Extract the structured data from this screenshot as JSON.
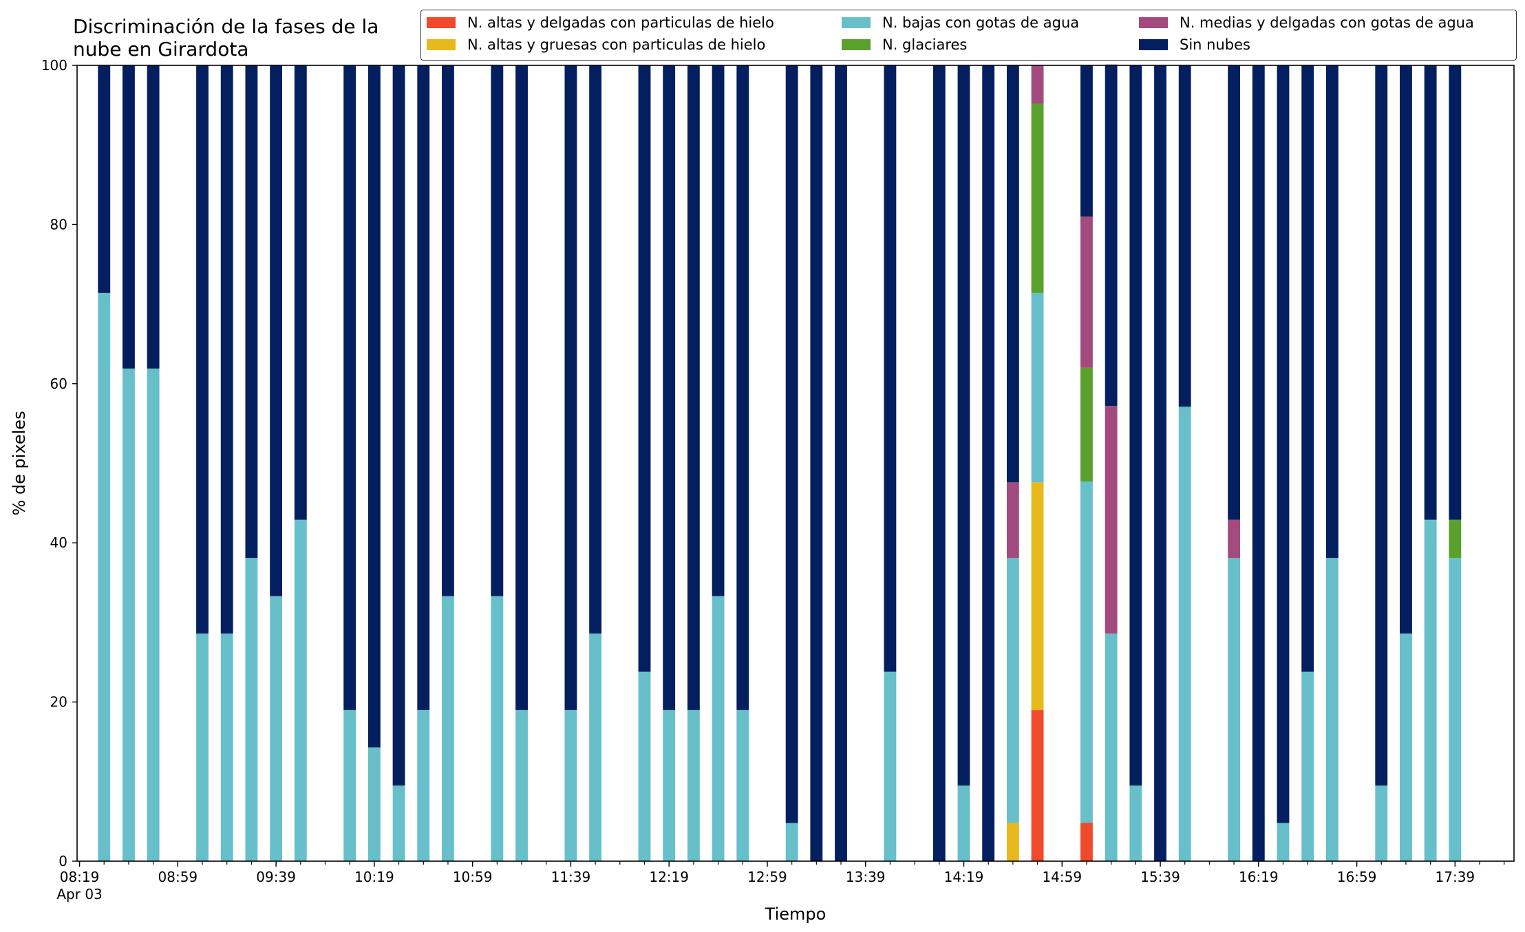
{
  "chart_data": {
    "type": "bar",
    "stacked": true,
    "title": "Discriminación de la fases de la nube en Girardota",
    "title_lines": [
      "Discriminación de la fases de la",
      "nube en Girardota"
    ],
    "xlabel": "Tiempo",
    "ylabel": "% de pixeles",
    "ylim": [
      0,
      100
    ],
    "yticks": [
      0,
      20,
      40,
      60,
      80,
      100
    ],
    "xtick_labels": [
      "08:19",
      "08:59",
      "09:39",
      "10:19",
      "10:59",
      "11:39",
      "12:19",
      "12:59",
      "13:39",
      "14:19",
      "14:59",
      "15:39",
      "16:19",
      "16:59",
      "17:39"
    ],
    "xtick_minutes": [
      499,
      539,
      579,
      619,
      659,
      699,
      739,
      779,
      819,
      859,
      899,
      939,
      979,
      1019,
      1059
    ],
    "date_label": "Apr 03",
    "xlim_minutes": [
      498,
      1083
    ],
    "bar_width_minutes": 5,
    "grid": false,
    "legend_position": "top-right",
    "series": [
      {
        "name": "N. altas y delgadas con particulas de hielo",
        "color": "#ee4a2b"
      },
      {
        "name": "N. altas y gruesas con particulas de hielo",
        "color": "#e8b91c"
      },
      {
        "name": "N. bajas con gotas de agua",
        "color": "#67bfca"
      },
      {
        "name": "N. glaciares",
        "color": "#5aa02c"
      },
      {
        "name": "N. medias y delgadas con gotas de agua",
        "color": "#a34a7e"
      },
      {
        "name": "Sin nubes",
        "color": "#031f5f"
      }
    ],
    "times": [
      "08:29",
      "08:39",
      "08:49",
      "09:09",
      "09:19",
      "09:29",
      "09:39",
      "09:49",
      "10:09",
      "10:19",
      "10:29",
      "10:39",
      "10:49",
      "11:09",
      "11:19",
      "11:39",
      "11:49",
      "12:09",
      "12:19",
      "12:29",
      "12:39",
      "12:49",
      "13:09",
      "13:19",
      "13:29",
      "13:49",
      "14:09",
      "14:19",
      "14:29",
      "14:39",
      "14:49",
      "15:09",
      "15:19",
      "15:29",
      "15:39",
      "15:49",
      "16:09",
      "16:19",
      "16:29",
      "16:39",
      "16:49",
      "17:09",
      "17:19",
      "17:29",
      "17:39"
    ],
    "bars": [
      [
        0,
        0,
        71.4,
        0,
        0,
        28.6
      ],
      [
        0,
        0,
        61.9,
        0,
        0,
        38.1
      ],
      [
        0,
        0,
        61.9,
        0,
        0,
        38.1
      ],
      [
        0,
        0,
        28.6,
        0,
        0,
        71.4
      ],
      [
        0,
        0,
        28.6,
        0,
        0,
        71.4
      ],
      [
        0,
        0,
        38.1,
        0,
        0,
        61.9
      ],
      [
        0,
        0,
        33.3,
        0,
        0,
        66.7
      ],
      [
        0,
        0,
        42.9,
        0,
        0,
        57.1
      ],
      [
        0,
        0,
        19.0,
        0,
        0,
        81.0
      ],
      [
        0,
        0,
        14.3,
        0,
        0,
        85.7
      ],
      [
        0,
        0,
        9.5,
        0,
        0,
        90.5
      ],
      [
        0,
        0,
        19.0,
        0,
        0,
        81.0
      ],
      [
        0,
        0,
        33.3,
        0,
        0,
        66.7
      ],
      [
        0,
        0,
        33.3,
        0,
        0,
        66.7
      ],
      [
        0,
        0,
        19.0,
        0,
        0,
        81.0
      ],
      [
        0,
        0,
        19.0,
        0,
        0,
        81.0
      ],
      [
        0,
        0,
        28.6,
        0,
        0,
        71.4
      ],
      [
        0,
        0,
        23.8,
        0,
        0,
        76.2
      ],
      [
        0,
        0,
        19.0,
        0,
        0,
        81.0
      ],
      [
        0,
        0,
        19.0,
        0,
        0,
        81.0
      ],
      [
        0,
        0,
        33.3,
        0,
        0,
        66.7
      ],
      [
        0,
        0,
        19.0,
        0,
        0,
        81.0
      ],
      [
        0,
        0,
        4.8,
        0,
        0,
        95.2
      ],
      [
        0,
        0,
        0,
        0,
        0,
        100
      ],
      [
        0,
        0,
        0,
        0,
        0,
        100
      ],
      [
        0,
        0,
        23.8,
        0,
        0,
        76.2
      ],
      [
        0,
        0,
        0,
        0,
        0,
        100
      ],
      [
        0,
        0,
        9.5,
        0,
        0,
        90.5
      ],
      [
        0,
        0,
        0,
        0,
        0,
        100
      ],
      [
        0,
        4.8,
        33.3,
        0,
        9.5,
        52.4
      ],
      [
        19.0,
        28.6,
        23.8,
        23.8,
        4.8,
        0
      ],
      [
        4.8,
        0,
        42.9,
        14.3,
        19.0,
        19.0
      ],
      [
        0,
        0,
        28.6,
        0,
        28.6,
        42.9
      ],
      [
        0,
        0,
        9.5,
        0,
        0,
        90.5
      ],
      [
        0,
        0,
        0,
        0,
        0,
        100
      ],
      [
        0,
        0,
        57.1,
        0,
        0,
        42.9
      ],
      [
        0,
        0,
        38.1,
        0,
        4.8,
        57.1
      ],
      [
        0,
        0,
        0,
        0,
        0,
        100
      ],
      [
        0,
        0,
        4.8,
        0,
        0,
        95.2
      ],
      [
        0,
        0,
        23.8,
        0,
        0,
        76.2
      ],
      [
        0,
        0,
        38.1,
        0,
        0,
        61.9
      ],
      [
        0,
        0,
        9.5,
        0,
        0,
        90.5
      ],
      [
        0,
        0,
        28.6,
        0,
        0,
        71.4
      ],
      [
        0,
        0,
        42.9,
        0,
        0,
        57.1
      ],
      [
        0,
        0,
        38.1,
        4.8,
        0,
        57.1
      ]
    ]
  }
}
